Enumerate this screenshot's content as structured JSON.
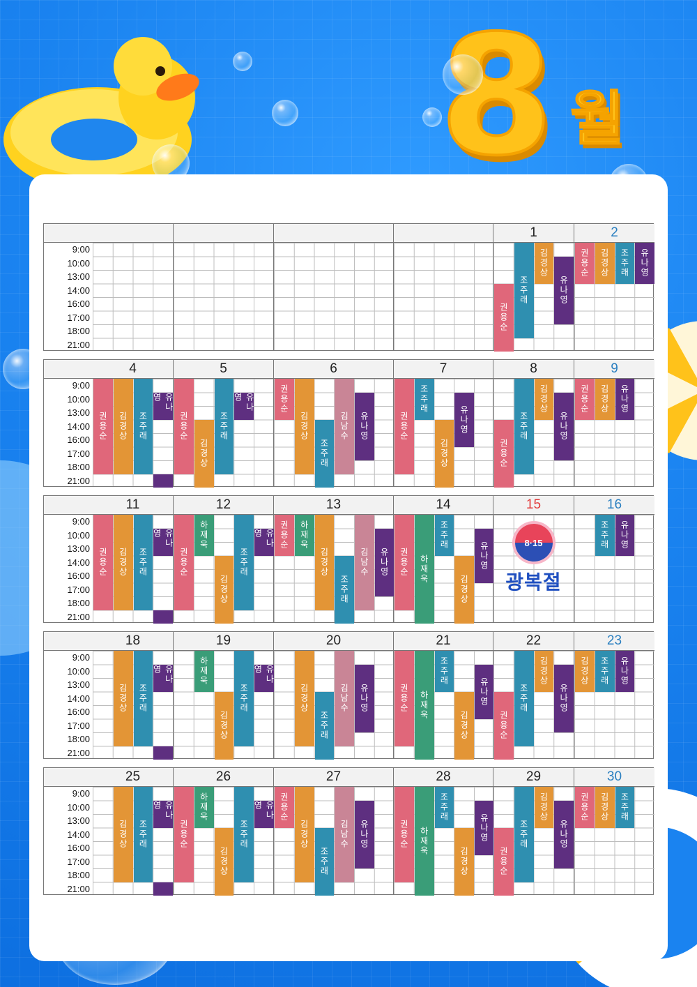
{
  "title": {
    "month_number": "8",
    "month_unit": "월"
  },
  "time_slots": [
    "9:00",
    "10:00",
    "13:00",
    "14:00",
    "16:00",
    "17:00",
    "18:00",
    "21:00"
  ],
  "staff_colors": {
    "권용순": "#e0677a",
    "김경상": "#e39536",
    "조주래": "#2f8fb0",
    "유나영": "#5e2f80",
    "하재욱": "#3a9d78",
    "김남수": "#c98596"
  },
  "holiday": {
    "badge": "8·15",
    "name": "광복절"
  },
  "weeks": [
    {
      "days": [
        {
          "date": "",
          "type": "weekday",
          "shifts": []
        },
        {
          "date": "",
          "type": "weekday",
          "shifts": []
        },
        {
          "date": "",
          "type": "weekday",
          "shifts": []
        },
        {
          "date": "",
          "type": "weekday",
          "shifts": []
        },
        {
          "date": "1",
          "type": "weekday",
          "shifts": [
            {
              "name": "권용순",
              "col": 0,
              "start": 3,
              "end": 8
            },
            {
              "name": "조주래",
              "col": 1,
              "start": 0,
              "end": 7
            },
            {
              "name": "김경상",
              "col": 2,
              "start": 0,
              "end": 3
            },
            {
              "name": "유나영",
              "col": 3,
              "start": 1,
              "end": 6
            }
          ]
        },
        {
          "date": "2",
          "type": "sat",
          "shifts": [
            {
              "name": "권용순",
              "col": 0,
              "start": 0,
              "end": 3
            },
            {
              "name": "김경상",
              "col": 1,
              "start": 0,
              "end": 3
            },
            {
              "name": "조주래",
              "col": 2,
              "start": 0,
              "end": 3
            },
            {
              "name": "유나영",
              "col": 3,
              "start": 0,
              "end": 3
            }
          ]
        }
      ]
    },
    {
      "days": [
        {
          "date": "4",
          "type": "weekday",
          "shifts": [
            {
              "name": "권용순",
              "col": 0,
              "start": 0,
              "end": 7
            },
            {
              "name": "김경상",
              "col": 1,
              "start": 0,
              "end": 7
            },
            {
              "name": "조주래",
              "col": 2,
              "start": 0,
              "end": 7
            },
            {
              "name": "유나영",
              "col": 3,
              "start": 1,
              "end": 3
            },
            {
              "name": "",
              "col": 3,
              "start": 7,
              "end": 8
            }
          ]
        },
        {
          "date": "5",
          "type": "weekday",
          "shifts": [
            {
              "name": "권용순",
              "col": 0,
              "start": 0,
              "end": 7
            },
            {
              "name": "김경상",
              "col": 1,
              "start": 3,
              "end": 8
            },
            {
              "name": "조주래",
              "col": 2,
              "start": 0,
              "end": 7
            },
            {
              "name": "유나영",
              "col": 3,
              "start": 1,
              "end": 3
            }
          ]
        },
        {
          "date": "6",
          "type": "weekday",
          "shifts": [
            {
              "name": "권용순",
              "col": 0,
              "start": 0,
              "end": 3
            },
            {
              "name": "김경상",
              "col": 1,
              "start": 0,
              "end": 7
            },
            {
              "name": "조주래",
              "col": 2,
              "start": 3,
              "end": 8
            },
            {
              "name": "김남수",
              "col": 3,
              "start": 0,
              "end": 7
            },
            {
              "name": "유나영",
              "col": 4,
              "start": 1,
              "end": 6
            }
          ]
        },
        {
          "date": "7",
          "type": "weekday",
          "shifts": [
            {
              "name": "권용순",
              "col": 0,
              "start": 0,
              "end": 7
            },
            {
              "name": "조주래",
              "col": 1,
              "start": 0,
              "end": 3
            },
            {
              "name": "김경상",
              "col": 2,
              "start": 3,
              "end": 8
            },
            {
              "name": "유나영",
              "col": 3,
              "start": 1,
              "end": 5
            }
          ]
        },
        {
          "date": "8",
          "type": "weekday",
          "shifts": [
            {
              "name": "권용순",
              "col": 0,
              "start": 3,
              "end": 8
            },
            {
              "name": "조주래",
              "col": 1,
              "start": 0,
              "end": 7
            },
            {
              "name": "김경상",
              "col": 2,
              "start": 0,
              "end": 3
            },
            {
              "name": "유나영",
              "col": 3,
              "start": 1,
              "end": 6
            }
          ]
        },
        {
          "date": "9",
          "type": "sat",
          "shifts": [
            {
              "name": "권용순",
              "col": 0,
              "start": 0,
              "end": 3
            },
            {
              "name": "김경상",
              "col": 1,
              "start": 0,
              "end": 3
            },
            {
              "name": "유나영",
              "col": 2,
              "start": 0,
              "end": 3
            }
          ]
        }
      ]
    },
    {
      "days": [
        {
          "date": "11",
          "type": "weekday",
          "shifts": [
            {
              "name": "권용순",
              "col": 0,
              "start": 0,
              "end": 7
            },
            {
              "name": "김경상",
              "col": 1,
              "start": 0,
              "end": 7
            },
            {
              "name": "조주래",
              "col": 2,
              "start": 0,
              "end": 7
            },
            {
              "name": "유나영",
              "col": 3,
              "start": 1,
              "end": 3
            },
            {
              "name": "",
              "col": 3,
              "start": 7,
              "end": 8
            }
          ]
        },
        {
          "date": "12",
          "type": "weekday",
          "shifts": [
            {
              "name": "권용순",
              "col": 0,
              "start": 0,
              "end": 7
            },
            {
              "name": "하재욱",
              "col": 1,
              "start": 0,
              "end": 3
            },
            {
              "name": "김경상",
              "col": 2,
              "start": 3,
              "end": 8
            },
            {
              "name": "조주래",
              "col": 3,
              "start": 0,
              "end": 7
            },
            {
              "name": "유나영",
              "col": 4,
              "start": 1,
              "end": 3
            }
          ]
        },
        {
          "date": "13",
          "type": "weekday",
          "shifts": [
            {
              "name": "권용순",
              "col": 0,
              "start": 0,
              "end": 3
            },
            {
              "name": "하재욱",
              "col": 1,
              "start": 0,
              "end": 3
            },
            {
              "name": "김경상",
              "col": 2,
              "start": 0,
              "end": 7
            },
            {
              "name": "조주래",
              "col": 3,
              "start": 3,
              "end": 8
            },
            {
              "name": "김남수",
              "col": 4,
              "start": 0,
              "end": 7
            },
            {
              "name": "유나영",
              "col": 5,
              "start": 1,
              "end": 6
            }
          ]
        },
        {
          "date": "14",
          "type": "weekday",
          "shifts": [
            {
              "name": "권용순",
              "col": 0,
              "start": 0,
              "end": 7
            },
            {
              "name": "하재욱",
              "col": 1,
              "start": 0,
              "end": 8
            },
            {
              "name": "조주래",
              "col": 2,
              "start": 0,
              "end": 3
            },
            {
              "name": "김경상",
              "col": 3,
              "start": 3,
              "end": 8
            },
            {
              "name": "유나영",
              "col": 4,
              "start": 1,
              "end": 5
            }
          ]
        },
        {
          "date": "15",
          "type": "hol",
          "holiday": true,
          "shifts": []
        },
        {
          "date": "16",
          "type": "sat",
          "shifts": [
            {
              "name": "조주래",
              "col": 1,
              "start": 0,
              "end": 3
            },
            {
              "name": "유나영",
              "col": 2,
              "start": 0,
              "end": 3
            }
          ]
        }
      ]
    },
    {
      "days": [
        {
          "date": "18",
          "type": "weekday",
          "shifts": [
            {
              "name": "김경상",
              "col": 1,
              "start": 0,
              "end": 7
            },
            {
              "name": "조주래",
              "col": 2,
              "start": 0,
              "end": 7
            },
            {
              "name": "유나영",
              "col": 3,
              "start": 1,
              "end": 3
            },
            {
              "name": "",
              "col": 3,
              "start": 7,
              "end": 8
            }
          ]
        },
        {
          "date": "19",
          "type": "weekday",
          "shifts": [
            {
              "name": "하재욱",
              "col": 1,
              "start": 0,
              "end": 3
            },
            {
              "name": "김경상",
              "col": 2,
              "start": 3,
              "end": 8
            },
            {
              "name": "조주래",
              "col": 3,
              "start": 0,
              "end": 7
            },
            {
              "name": "유나영",
              "col": 4,
              "start": 1,
              "end": 3
            }
          ]
        },
        {
          "date": "20",
          "type": "weekday",
          "shifts": [
            {
              "name": "김경상",
              "col": 1,
              "start": 0,
              "end": 7
            },
            {
              "name": "조주래",
              "col": 2,
              "start": 3,
              "end": 8
            },
            {
              "name": "김남수",
              "col": 3,
              "start": 0,
              "end": 7
            },
            {
              "name": "유나영",
              "col": 4,
              "start": 1,
              "end": 6
            }
          ]
        },
        {
          "date": "21",
          "type": "weekday",
          "shifts": [
            {
              "name": "권용순",
              "col": 0,
              "start": 0,
              "end": 7
            },
            {
              "name": "하재욱",
              "col": 1,
              "start": 0,
              "end": 8
            },
            {
              "name": "조주래",
              "col": 2,
              "start": 0,
              "end": 3
            },
            {
              "name": "김경상",
              "col": 3,
              "start": 3,
              "end": 8
            },
            {
              "name": "유나영",
              "col": 4,
              "start": 1,
              "end": 5
            }
          ]
        },
        {
          "date": "22",
          "type": "weekday",
          "shifts": [
            {
              "name": "권용순",
              "col": 0,
              "start": 3,
              "end": 8
            },
            {
              "name": "조주래",
              "col": 1,
              "start": 0,
              "end": 7
            },
            {
              "name": "김경상",
              "col": 2,
              "start": 0,
              "end": 3
            },
            {
              "name": "유나영",
              "col": 3,
              "start": 1,
              "end": 6
            }
          ]
        },
        {
          "date": "23",
          "type": "sat",
          "shifts": [
            {
              "name": "김경상",
              "col": 0,
              "start": 0,
              "end": 3
            },
            {
              "name": "조주래",
              "col": 1,
              "start": 0,
              "end": 3
            },
            {
              "name": "유나영",
              "col": 2,
              "start": 0,
              "end": 3
            }
          ]
        }
      ]
    },
    {
      "days": [
        {
          "date": "25",
          "type": "weekday",
          "shifts": [
            {
              "name": "김경상",
              "col": 1,
              "start": 0,
              "end": 7
            },
            {
              "name": "조주래",
              "col": 2,
              "start": 0,
              "end": 7
            },
            {
              "name": "유나영",
              "col": 3,
              "start": 1,
              "end": 3
            },
            {
              "name": "",
              "col": 3,
              "start": 7,
              "end": 8
            }
          ]
        },
        {
          "date": "26",
          "type": "weekday",
          "shifts": [
            {
              "name": "권용순",
              "col": 0,
              "start": 0,
              "end": 7
            },
            {
              "name": "하재욱",
              "col": 1,
              "start": 0,
              "end": 3
            },
            {
              "name": "김경상",
              "col": 2,
              "start": 3,
              "end": 8
            },
            {
              "name": "조주래",
              "col": 3,
              "start": 0,
              "end": 7
            },
            {
              "name": "유나영",
              "col": 4,
              "start": 1,
              "end": 3
            }
          ]
        },
        {
          "date": "27",
          "type": "weekday",
          "shifts": [
            {
              "name": "권용순",
              "col": 0,
              "start": 0,
              "end": 3
            },
            {
              "name": "김경상",
              "col": 1,
              "start": 0,
              "end": 7
            },
            {
              "name": "조주래",
              "col": 2,
              "start": 3,
              "end": 8
            },
            {
              "name": "김남수",
              "col": 3,
              "start": 0,
              "end": 7
            },
            {
              "name": "유나영",
              "col": 4,
              "start": 1,
              "end": 6
            }
          ]
        },
        {
          "date": "28",
          "type": "weekday",
          "shifts": [
            {
              "name": "권용순",
              "col": 0,
              "start": 0,
              "end": 7
            },
            {
              "name": "하재욱",
              "col": 1,
              "start": 0,
              "end": 8
            },
            {
              "name": "조주래",
              "col": 2,
              "start": 0,
              "end": 3
            },
            {
              "name": "김경상",
              "col": 3,
              "start": 3,
              "end": 8
            },
            {
              "name": "유나영",
              "col": 4,
              "start": 1,
              "end": 5
            }
          ]
        },
        {
          "date": "29",
          "type": "weekday",
          "shifts": [
            {
              "name": "권용순",
              "col": 0,
              "start": 3,
              "end": 8
            },
            {
              "name": "조주래",
              "col": 1,
              "start": 0,
              "end": 7
            },
            {
              "name": "김경상",
              "col": 2,
              "start": 0,
              "end": 3
            },
            {
              "name": "유나영",
              "col": 3,
              "start": 1,
              "end": 6
            }
          ]
        },
        {
          "date": "30",
          "type": "sat",
          "shifts": [
            {
              "name": "권용순",
              "col": 0,
              "start": 0,
              "end": 3
            },
            {
              "name": "김경상",
              "col": 1,
              "start": 0,
              "end": 3
            },
            {
              "name": "조주래",
              "col": 2,
              "start": 0,
              "end": 3
            }
          ]
        }
      ]
    }
  ]
}
